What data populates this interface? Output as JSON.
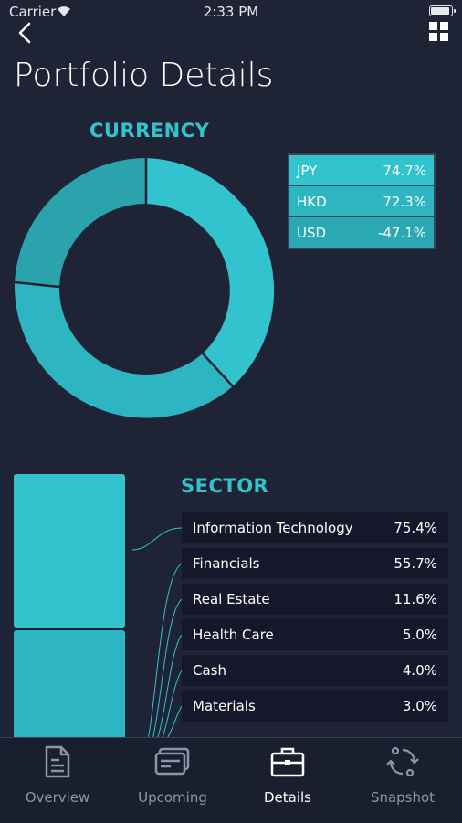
{
  "status": {
    "carrier": "Carrier",
    "time": "2:33 PM"
  },
  "header": {
    "title": "Portfolio Details"
  },
  "currency": {
    "title": "CURRENCY",
    "rows": [
      {
        "code": "JPY",
        "percent": "74.7%"
      },
      {
        "code": "HKD",
        "percent": "72.3%"
      },
      {
        "code": "USD",
        "percent": "-47.1%"
      }
    ]
  },
  "sector": {
    "title": "SECTOR",
    "rows": [
      {
        "name": "Information Technology",
        "percent": "75.4%"
      },
      {
        "name": "Financials",
        "percent": "55.7%"
      },
      {
        "name": "Real Estate",
        "percent": "11.6%"
      },
      {
        "name": "Health Care",
        "percent": "5.0%"
      },
      {
        "name": "Cash",
        "percent": "4.0%"
      },
      {
        "name": "Materials",
        "percent": "3.0%"
      }
    ]
  },
  "tabs": [
    {
      "label": "Overview",
      "icon": "document-icon"
    },
    {
      "label": "Upcoming",
      "icon": "cards-icon"
    },
    {
      "label": "Details",
      "icon": "briefcase-icon"
    },
    {
      "label": "Snapshot",
      "icon": "rotate-icon"
    }
  ],
  "colors": {
    "background": "#1e2435",
    "accent": "#33c3cf",
    "row_dark": "#15182a",
    "tab_inactive": "#8e95a6"
  }
}
